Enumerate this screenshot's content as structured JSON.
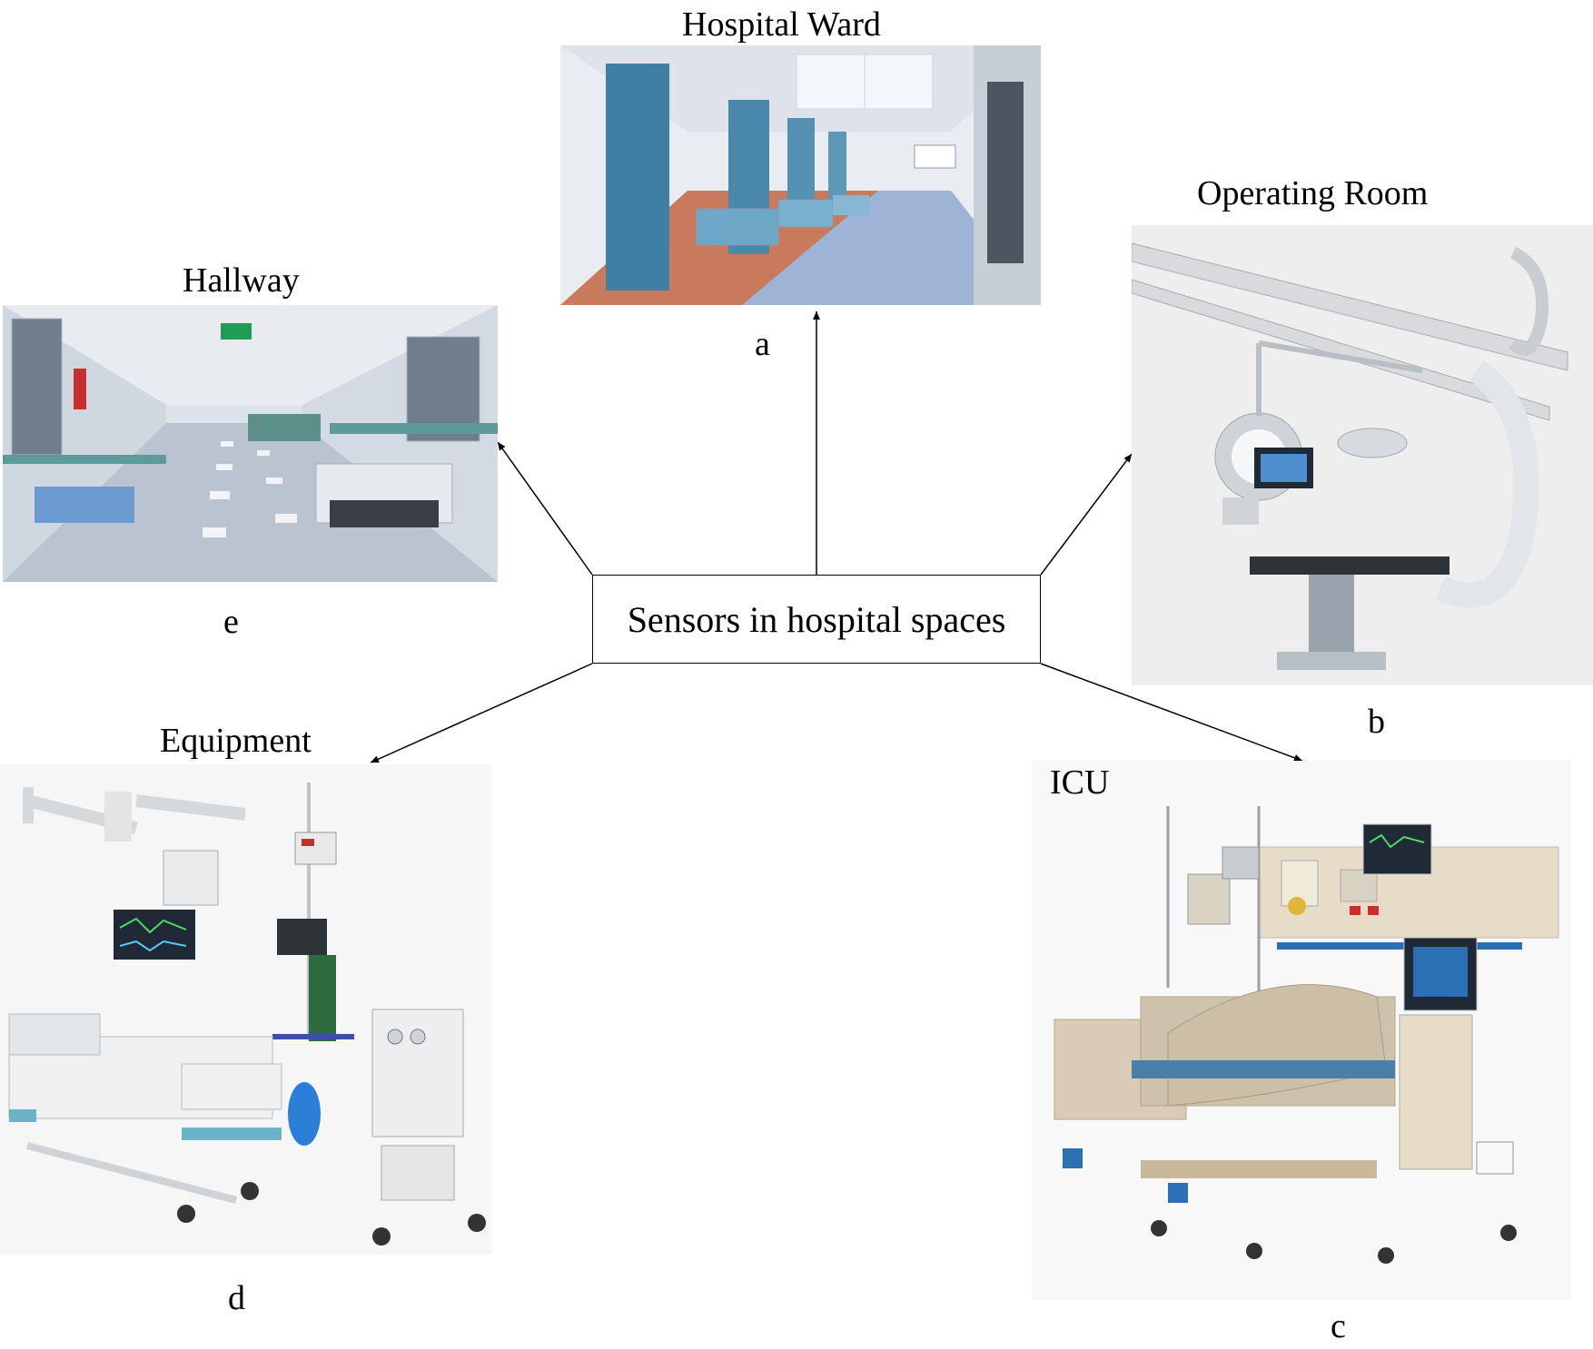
{
  "center": {
    "label": "Sensors in hospital spaces"
  },
  "nodes": {
    "ward": {
      "title": "Hospital  Ward",
      "letter": "a"
    },
    "operating": {
      "title": "Operating Room",
      "letter": "b"
    },
    "icu": {
      "title": "ICU",
      "letter": "c"
    },
    "equipment": {
      "title": "Equipment",
      "letter": "d"
    },
    "hallway": {
      "title": "Hallway",
      "letter": "e"
    }
  },
  "colors": {
    "arrow": "#000000",
    "curtain": "#3f7fa3",
    "floor_orange": "#c97a5c",
    "floor_blue": "#9db4d6",
    "equipment_blue": "#6b9bd1",
    "monitor_dark": "#1f2a36",
    "bed_beige": "#d9cbb5"
  }
}
